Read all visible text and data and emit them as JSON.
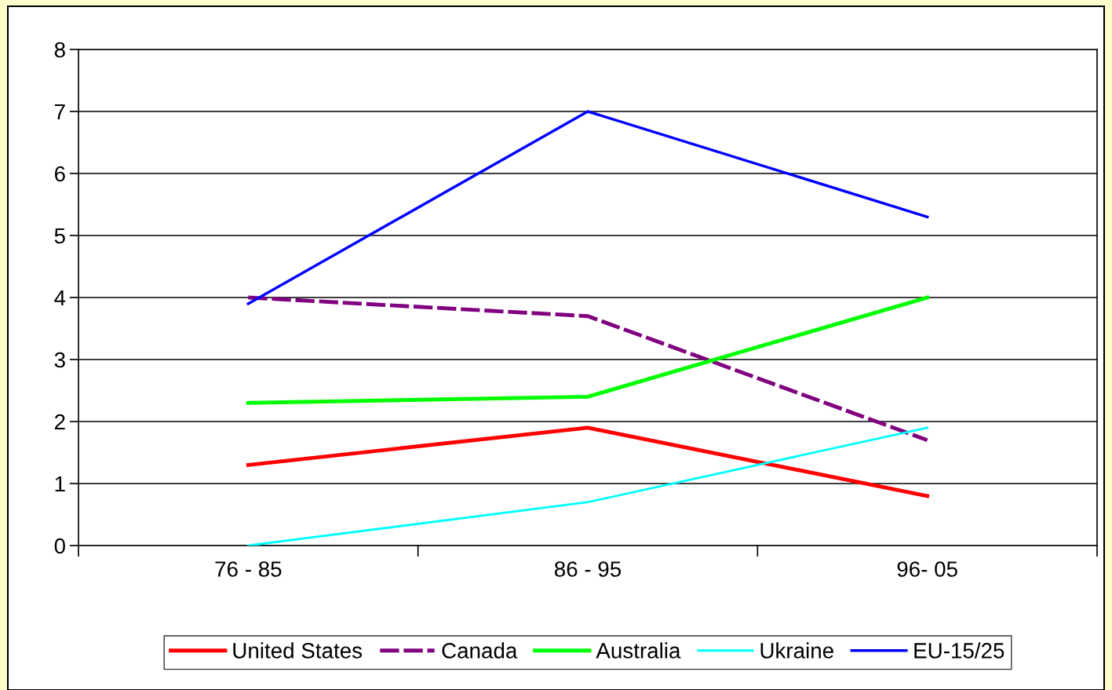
{
  "chart_data": {
    "type": "line",
    "categories": [
      "76 - 85",
      "86 - 95",
      "96- 05"
    ],
    "series": [
      {
        "name": "United States",
        "color": "#ff0000",
        "values": [
          1.3,
          1.9,
          0.8
        ],
        "line_style": "solid"
      },
      {
        "name": "Canada",
        "color": "#800080",
        "values": [
          4.0,
          3.7,
          1.7
        ],
        "line_style": "dashed"
      },
      {
        "name": "Australia",
        "color": "#00ff00",
        "values": [
          2.3,
          2.4,
          4.0
        ],
        "line_style": "solid"
      },
      {
        "name": "Ukraine",
        "color": "#00ffff",
        "values": [
          0.0,
          0.7,
          1.9
        ],
        "line_style": "solid"
      },
      {
        "name": "EU-15/25",
        "color": "#0000ff",
        "values": [
          3.9,
          7.0,
          5.3
        ],
        "line_style": "solid"
      }
    ],
    "ylim": [
      0,
      8
    ],
    "yticks": [
      0,
      1,
      2,
      3,
      4,
      5,
      6,
      7,
      8
    ],
    "grid": "y",
    "legend": "bottom",
    "marker": "none"
  }
}
